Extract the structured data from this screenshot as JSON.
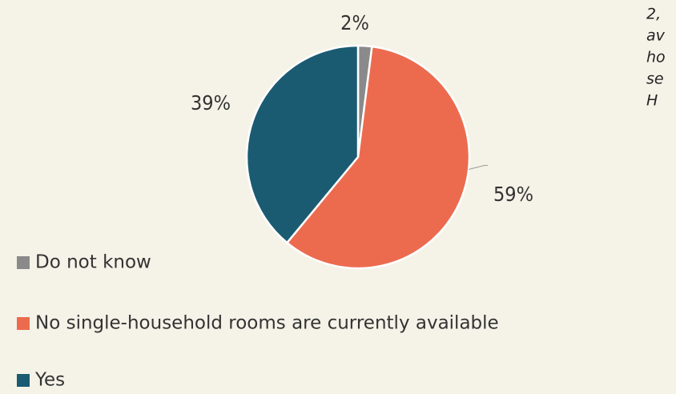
{
  "chart_data": {
    "type": "pie",
    "categories": [
      "Do not know",
      "No single-household rooms are currently  available",
      "Yes"
    ],
    "values": [
      2,
      59,
      39
    ],
    "value_labels": [
      "2%",
      "59%",
      "39%"
    ],
    "colors": [
      "#8a8a8a",
      "#ec6b4f",
      "#1b5b72"
    ],
    "legend": "bottom-left",
    "annotation": [
      "2,",
      "av",
      "ho",
      "se",
      "H"
    ]
  }
}
